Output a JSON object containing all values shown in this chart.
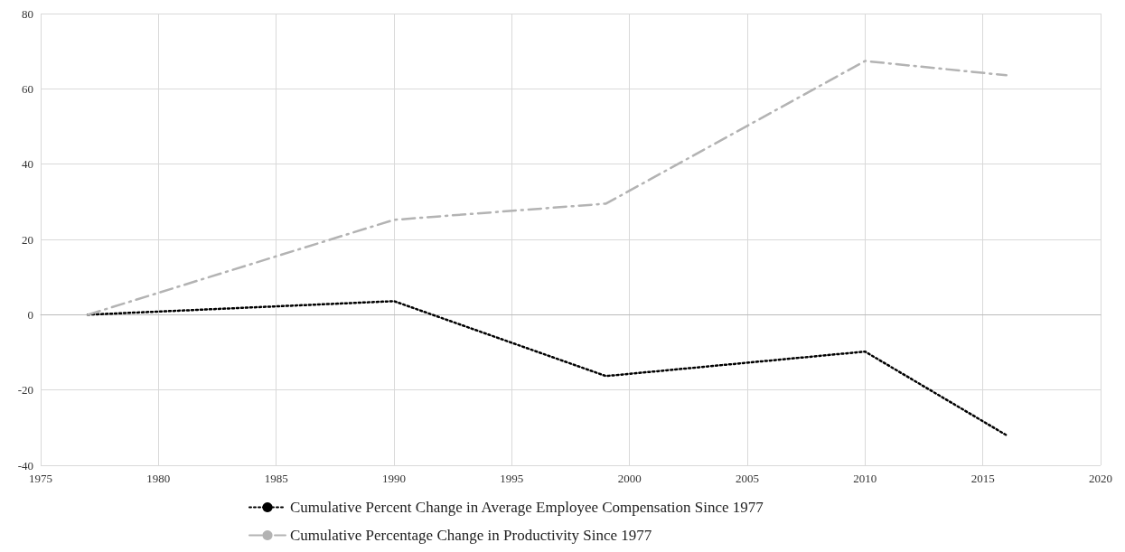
{
  "chart_data": {
    "type": "line",
    "series": [
      {
        "name": "Cumulative Percent Change in Average Employee Compensation Since 1977",
        "color": "#000000",
        "line_style": "dotted",
        "x": [
          1977,
          1990,
          1999,
          2010,
          2016
        ],
        "values": [
          0,
          3.6,
          -16.3,
          -9.8,
          -32
        ]
      },
      {
        "name": "Cumulative Percentage Change in Productivity Since 1977",
        "color": "#b3b3b3",
        "line_style": "dashed",
        "x": [
          1977,
          1990,
          1999,
          2010,
          2016
        ],
        "values": [
          0,
          25.2,
          29.5,
          67.4,
          63.6
        ]
      }
    ],
    "xlim": [
      1975,
      2020
    ],
    "xticks": [
      1975,
      1980,
      1985,
      1990,
      1995,
      2000,
      2005,
      2010,
      2015,
      2020
    ],
    "ylim": [
      -40,
      80
    ],
    "yticks": [
      -40,
      -20,
      0,
      20,
      40,
      60,
      80
    ],
    "grid": true,
    "legend": "bottom",
    "marker": "none"
  }
}
